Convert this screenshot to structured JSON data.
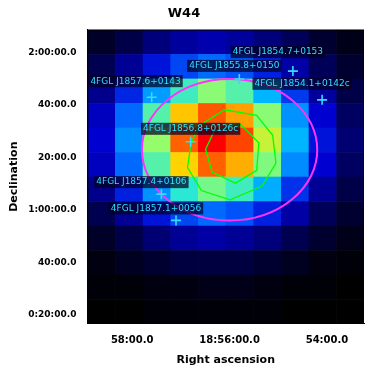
{
  "chart_data": {
    "type": "heatmap",
    "title": "W44",
    "xlabel": "Right ascension",
    "ylabel": "Declination",
    "xlim": [
      284.73,
      283.31
    ],
    "ylim": [
      0.275,
      2.147
    ],
    "xticks": [
      {
        "value": 284.5,
        "label": "58:00.0"
      },
      {
        "value": 284.0,
        "label": "18:56:00.0"
      },
      {
        "value": 283.5,
        "label": "54:00.0"
      }
    ],
    "yticks": [
      {
        "value": 2.0,
        "label": "2:00:00.0"
      },
      {
        "value": 1.6667,
        "label": "40:00.0"
      },
      {
        "value": 1.3333,
        "label": "20:00.0"
      },
      {
        "value": 1.0,
        "label": "1:00:00.0"
      },
      {
        "value": 0.6667,
        "label": "40:00.0"
      },
      {
        "value": 0.3333,
        "label": "0:20:00.0"
      }
    ],
    "grid": false,
    "heatmap": {
      "x_bins": [
        284.73,
        284.588,
        284.446,
        284.304,
        284.162,
        284.02,
        283.878,
        283.736,
        283.594,
        283.452,
        283.31
      ],
      "y_bins": [
        2.147,
        1.991,
        1.835,
        1.679,
        1.523,
        1.367,
        1.211,
        1.055,
        0.899,
        0.743,
        0.587,
        0.431,
        0.275
      ],
      "cells": [
        [
          0.05,
          0.09,
          0.15,
          0.19,
          0.21,
          0.19,
          0.15,
          0.11,
          0.06,
          0.03
        ],
        [
          0.1,
          0.18,
          0.28,
          0.36,
          0.41,
          0.38,
          0.3,
          0.2,
          0.11,
          0.06
        ],
        [
          0.17,
          0.31,
          0.47,
          0.61,
          0.68,
          0.63,
          0.5,
          0.34,
          0.19,
          0.09
        ],
        [
          0.23,
          0.41,
          0.63,
          0.82,
          0.91,
          0.85,
          0.68,
          0.46,
          0.25,
          0.12
        ],
        [
          0.25,
          0.45,
          0.69,
          0.9,
          1.0,
          0.93,
          0.74,
          0.5,
          0.28,
          0.14
        ],
        [
          0.23,
          0.41,
          0.63,
          0.81,
          0.9,
          0.84,
          0.67,
          0.45,
          0.25,
          0.12
        ],
        [
          0.17,
          0.3,
          0.46,
          0.59,
          0.66,
          0.61,
          0.49,
          0.33,
          0.18,
          0.09
        ],
        [
          0.1,
          0.18,
          0.28,
          0.36,
          0.41,
          0.38,
          0.3,
          0.2,
          0.11,
          0.06
        ],
        [
          0.05,
          0.09,
          0.14,
          0.18,
          0.2,
          0.18,
          0.15,
          0.1,
          0.06,
          0.03
        ],
        [
          0.02,
          0.04,
          0.06,
          0.08,
          0.08,
          0.08,
          0.06,
          0.04,
          0.02,
          0.01
        ],
        [
          0.01,
          0.01,
          0.02,
          0.02,
          0.03,
          0.03,
          0.02,
          0.01,
          0.01,
          0.0
        ],
        [
          0.0,
          0.0,
          0.01,
          0.01,
          0.01,
          0.01,
          0.01,
          0.0,
          0.0,
          0.0
        ]
      ]
    },
    "contours": {
      "color": "#00ff00",
      "paths": [
        [
          [
            284.161,
            1.532
          ],
          [
            284.025,
            1.637
          ],
          [
            283.861,
            1.602
          ],
          [
            283.779,
            1.474
          ],
          [
            283.762,
            1.298
          ],
          [
            283.833,
            1.152
          ],
          [
            283.997,
            1.064
          ],
          [
            284.145,
            1.123
          ],
          [
            284.216,
            1.269
          ],
          [
            284.199,
            1.415
          ]
        ],
        [
          [
            284.079,
            1.503
          ],
          [
            283.943,
            1.544
          ],
          [
            283.85,
            1.427
          ],
          [
            283.861,
            1.251
          ],
          [
            283.97,
            1.17
          ],
          [
            284.09,
            1.24
          ],
          [
            284.123,
            1.386
          ]
        ]
      ]
    },
    "circle": {
      "color": "#ff33ff",
      "ra": 284.0,
      "dec": 1.383,
      "radius": 0.45
    },
    "sources": {
      "color": "#33ddff",
      "marker": "cross",
      "labels": [
        "4FGL J1854.7+0153",
        "4FGL J1855.8+0150",
        "4FGL J1857.6+0143",
        "4FGL J1854.1+0142c",
        "4FGL J1856.8+0126c",
        "4FGL J1857.4+0106",
        "4FGL J1857.1+0056"
      ],
      "x": [
        283.675,
        283.95,
        284.4,
        283.525,
        284.2,
        284.35,
        284.275
      ],
      "y": [
        1.883,
        1.833,
        1.717,
        1.7,
        1.433,
        1.1,
        0.933
      ]
    }
  }
}
